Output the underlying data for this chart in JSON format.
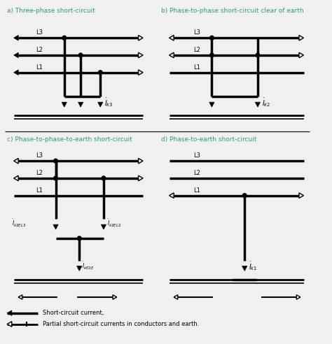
{
  "title_a": "a) Three-phase short-circuit",
  "title_b": "b) Phase-to-phase short-circuit clear of earth",
  "title_c": "c) Phase-to-phase-to-earth short-circuit",
  "title_d": "d) Phase-to-earth short-circuit",
  "legend_1": "Short-circuit current,",
  "legend_2": "Partial short-circuit currents in conductors and earth.",
  "bg_color": "#f0f0f0",
  "line_color": "#000000",
  "title_color": "#2e9e6e",
  "line_lw": 2.5
}
